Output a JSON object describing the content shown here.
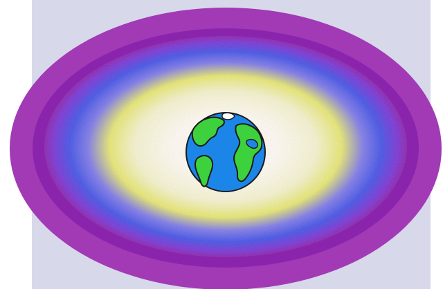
{
  "scene": {
    "subject": "earth-icon",
    "colors": {
      "background_panel": "#d7d9ea",
      "page_background": "#ffffff",
      "outer_ring": "#a23ab5",
      "inner_ring": "#8b24ad",
      "blue_band": "#4553e6",
      "yellow_band": "#e5e56c",
      "center_glow": "#fff7ef",
      "ocean": "#1c86e8",
      "land": "#3dd23d",
      "ice": "#ffffff",
      "outline": "#1a1a1a"
    }
  }
}
